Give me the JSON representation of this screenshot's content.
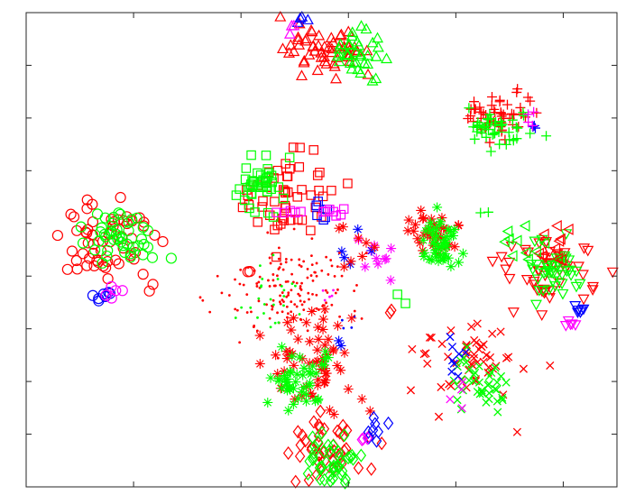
{
  "chart_data": {
    "type": "scatter",
    "title": "",
    "xlabel": "",
    "ylabel": "",
    "xlim": [
      0,
      11
    ],
    "ylim": [
      0,
      9
    ],
    "x_ticks": [
      2,
      4,
      6,
      8,
      10
    ],
    "y_ticks": [
      1,
      2,
      3,
      4,
      5,
      6,
      7,
      8
    ],
    "grid": false,
    "legend": "none",
    "colors": {
      "red": "#ff0000",
      "green": "#00ff00",
      "blue": "#0000ff",
      "magenta": "#ff00ff"
    },
    "series": [
      {
        "color": "red",
        "marker": "o",
        "cx": 1.55,
        "cy": 4.7,
        "spread": [
          0.42,
          0.38
        ],
        "n": 60,
        "seed": 11
      },
      {
        "color": "green",
        "marker": "o",
        "cx": 1.75,
        "cy": 4.75,
        "spread": [
          0.35,
          0.3
        ],
        "n": 45,
        "seed": 12
      },
      {
        "color": "blue",
        "marker": "o",
        "cx": 1.45,
        "cy": 3.6,
        "spread": [
          0.15,
          0.06
        ],
        "n": 8,
        "seed": 13
      },
      {
        "color": "magenta",
        "marker": "o",
        "cx": 1.7,
        "cy": 3.75,
        "spread": [
          0.12,
          0.08
        ],
        "n": 5,
        "seed": 14
      },
      {
        "color": "red",
        "marker": "o",
        "cx": 4.2,
        "cy": 4.1,
        "spread": [
          0.06,
          0.04
        ],
        "n": 2,
        "seed": 15
      },
      {
        "color": "red",
        "marker": "^",
        "cx": 5.5,
        "cy": 8.3,
        "spread": [
          0.38,
          0.25
        ],
        "n": 55,
        "seed": 21
      },
      {
        "color": "green",
        "marker": "^",
        "cx": 6.2,
        "cy": 8.2,
        "spread": [
          0.22,
          0.22
        ],
        "n": 35,
        "seed": 22
      },
      {
        "color": "blue",
        "marker": "^",
        "cx": 5.15,
        "cy": 8.88,
        "spread": [
          0.12,
          0.04
        ],
        "n": 4,
        "seed": 23
      },
      {
        "color": "magenta",
        "marker": "^",
        "cx": 4.95,
        "cy": 8.68,
        "spread": [
          0.08,
          0.05
        ],
        "n": 3,
        "seed": 24
      },
      {
        "color": "red",
        "marker": "+",
        "cx": 8.8,
        "cy": 7.05,
        "spread": [
          0.32,
          0.22
        ],
        "n": 50,
        "seed": 31
      },
      {
        "color": "green",
        "marker": "+",
        "cx": 8.75,
        "cy": 6.8,
        "spread": [
          0.26,
          0.22
        ],
        "n": 45,
        "seed": 32
      },
      {
        "color": "blue",
        "marker": "+",
        "cx": 9.45,
        "cy": 6.85,
        "spread": [
          0.06,
          0.05
        ],
        "n": 3,
        "seed": 33
      },
      {
        "color": "magenta",
        "marker": "+",
        "cx": 9.35,
        "cy": 7.0,
        "spread": [
          0.08,
          0.1
        ],
        "n": 4,
        "seed": 34
      },
      {
        "color": "green",
        "marker": "+",
        "cx": 8.5,
        "cy": 5.2,
        "spread": [
          0.05,
          0.03
        ],
        "n": 2,
        "seed": 35
      },
      {
        "color": "red",
        "marker": "s",
        "cx": 4.85,
        "cy": 5.65,
        "spread": [
          0.38,
          0.42
        ],
        "n": 50,
        "seed": 41
      },
      {
        "color": "green",
        "marker": "s",
        "cx": 4.4,
        "cy": 5.75,
        "spread": [
          0.22,
          0.28
        ],
        "n": 40,
        "seed": 42
      },
      {
        "color": "blue",
        "marker": "s",
        "cx": 5.6,
        "cy": 5.3,
        "spread": [
          0.15,
          0.08
        ],
        "n": 6,
        "seed": 43
      },
      {
        "color": "magenta",
        "marker": "s",
        "cx": 5.4,
        "cy": 5.25,
        "spread": [
          0.3,
          0.08
        ],
        "n": 12,
        "seed": 44
      },
      {
        "color": "green",
        "marker": "s",
        "cx": 7.0,
        "cy": 3.5,
        "spread": [
          0.2,
          0.1
        ],
        "n": 2,
        "seed": 45
      },
      {
        "color": "red",
        "marker": "*",
        "cx": 7.6,
        "cy": 4.85,
        "spread": [
          0.22,
          0.22
        ],
        "n": 35,
        "seed": 51
      },
      {
        "color": "green",
        "marker": "*",
        "cx": 7.7,
        "cy": 4.6,
        "spread": [
          0.22,
          0.25
        ],
        "n": 45,
        "seed": 52
      },
      {
        "color": "magenta",
        "marker": "*",
        "cx": 6.5,
        "cy": 4.25,
        "spread": [
          0.3,
          0.15
        ],
        "n": 10,
        "seed": 53
      },
      {
        "color": "blue",
        "marker": "*",
        "cx": 6.3,
        "cy": 4.45,
        "spread": [
          0.2,
          0.15
        ],
        "n": 5,
        "seed": 54
      },
      {
        "color": "red",
        "marker": "*",
        "cx": 6.0,
        "cy": 4.6,
        "spread": [
          0.3,
          0.25
        ],
        "n": 8,
        "seed": 55
      },
      {
        "color": "red",
        "marker": ".",
        "cx": 4.9,
        "cy": 3.7,
        "spread": [
          0.6,
          0.45
        ],
        "n": 140,
        "seed": 61
      },
      {
        "color": "green",
        "marker": ".",
        "cx": 4.5,
        "cy": 3.6,
        "spread": [
          0.3,
          0.3
        ],
        "n": 25,
        "seed": 62
      },
      {
        "color": "magenta",
        "marker": ".",
        "cx": 5.7,
        "cy": 3.7,
        "spread": [
          0.2,
          0.1
        ],
        "n": 5,
        "seed": 63
      },
      {
        "color": "blue",
        "marker": ".",
        "cx": 5.9,
        "cy": 3.1,
        "spread": [
          0.1,
          0.1
        ],
        "n": 4,
        "seed": 64
      },
      {
        "color": "red",
        "marker": "*",
        "cx": 5.3,
        "cy": 2.45,
        "spread": [
          0.45,
          0.45
        ],
        "n": 60,
        "seed": 71
      },
      {
        "color": "green",
        "marker": "*",
        "cx": 5.1,
        "cy": 2.0,
        "spread": [
          0.32,
          0.28
        ],
        "n": 45,
        "seed": 72
      },
      {
        "color": "blue",
        "marker": "*",
        "cx": 5.8,
        "cy": 2.7,
        "spread": [
          0.06,
          0.06
        ],
        "n": 2,
        "seed": 73
      },
      {
        "color": "red",
        "marker": "v",
        "cx": 9.65,
        "cy": 4.1,
        "spread": [
          0.4,
          0.35
        ],
        "n": 50,
        "seed": 81
      },
      {
        "color": "green",
        "marker": "v",
        "cx": 9.85,
        "cy": 4.1,
        "spread": [
          0.25,
          0.3
        ],
        "n": 40,
        "seed": 82
      },
      {
        "color": "blue",
        "marker": "v",
        "cx": 10.3,
        "cy": 3.35,
        "spread": [
          0.15,
          0.05
        ],
        "n": 6,
        "seed": 83
      },
      {
        "color": "magenta",
        "marker": "v",
        "cx": 10.1,
        "cy": 3.1,
        "spread": [
          0.1,
          0.06
        ],
        "n": 5,
        "seed": 84
      },
      {
        "color": "red",
        "marker": "<",
        "cx": 9.8,
        "cy": 4.5,
        "spread": [
          0.15,
          0.2
        ],
        "n": 10,
        "seed": 85
      },
      {
        "color": "green",
        "marker": "<",
        "cx": 9.3,
        "cy": 4.6,
        "spread": [
          0.2,
          0.2
        ],
        "n": 10,
        "seed": 86
      },
      {
        "color": "red",
        "marker": "x",
        "cx": 8.3,
        "cy": 2.4,
        "spread": [
          0.45,
          0.4
        ],
        "n": 50,
        "seed": 91
      },
      {
        "color": "green",
        "marker": "x",
        "cx": 8.55,
        "cy": 1.95,
        "spread": [
          0.28,
          0.28
        ],
        "n": 40,
        "seed": 92
      },
      {
        "color": "blue",
        "marker": "x",
        "cx": 7.95,
        "cy": 2.35,
        "spread": [
          0.15,
          0.35
        ],
        "n": 8,
        "seed": 93
      },
      {
        "color": "magenta",
        "marker": "x",
        "cx": 8.05,
        "cy": 1.7,
        "spread": [
          0.08,
          0.2
        ],
        "n": 4,
        "seed": 94
      },
      {
        "color": "red",
        "marker": "x",
        "cx": 7.3,
        "cy": 2.6,
        "spread": [
          0.1,
          0.1
        ],
        "n": 3,
        "seed": 95
      },
      {
        "color": "red",
        "marker": "d",
        "cx": 5.7,
        "cy": 0.75,
        "spread": [
          0.35,
          0.3
        ],
        "n": 45,
        "seed": 101
      },
      {
        "color": "green",
        "marker": "d",
        "cx": 5.7,
        "cy": 0.45,
        "spread": [
          0.3,
          0.25
        ],
        "n": 40,
        "seed": 102
      },
      {
        "color": "blue",
        "marker": "d",
        "cx": 6.45,
        "cy": 1.05,
        "spread": [
          0.12,
          0.12
        ],
        "n": 8,
        "seed": 103
      },
      {
        "color": "magenta",
        "marker": "d",
        "cx": 6.3,
        "cy": 0.95,
        "spread": [
          0.08,
          0.06
        ],
        "n": 3,
        "seed": 104
      },
      {
        "color": "red",
        "marker": "d",
        "cx": 6.8,
        "cy": 3.35,
        "spread": [
          0.06,
          0.06
        ],
        "n": 2,
        "seed": 105
      }
    ]
  }
}
